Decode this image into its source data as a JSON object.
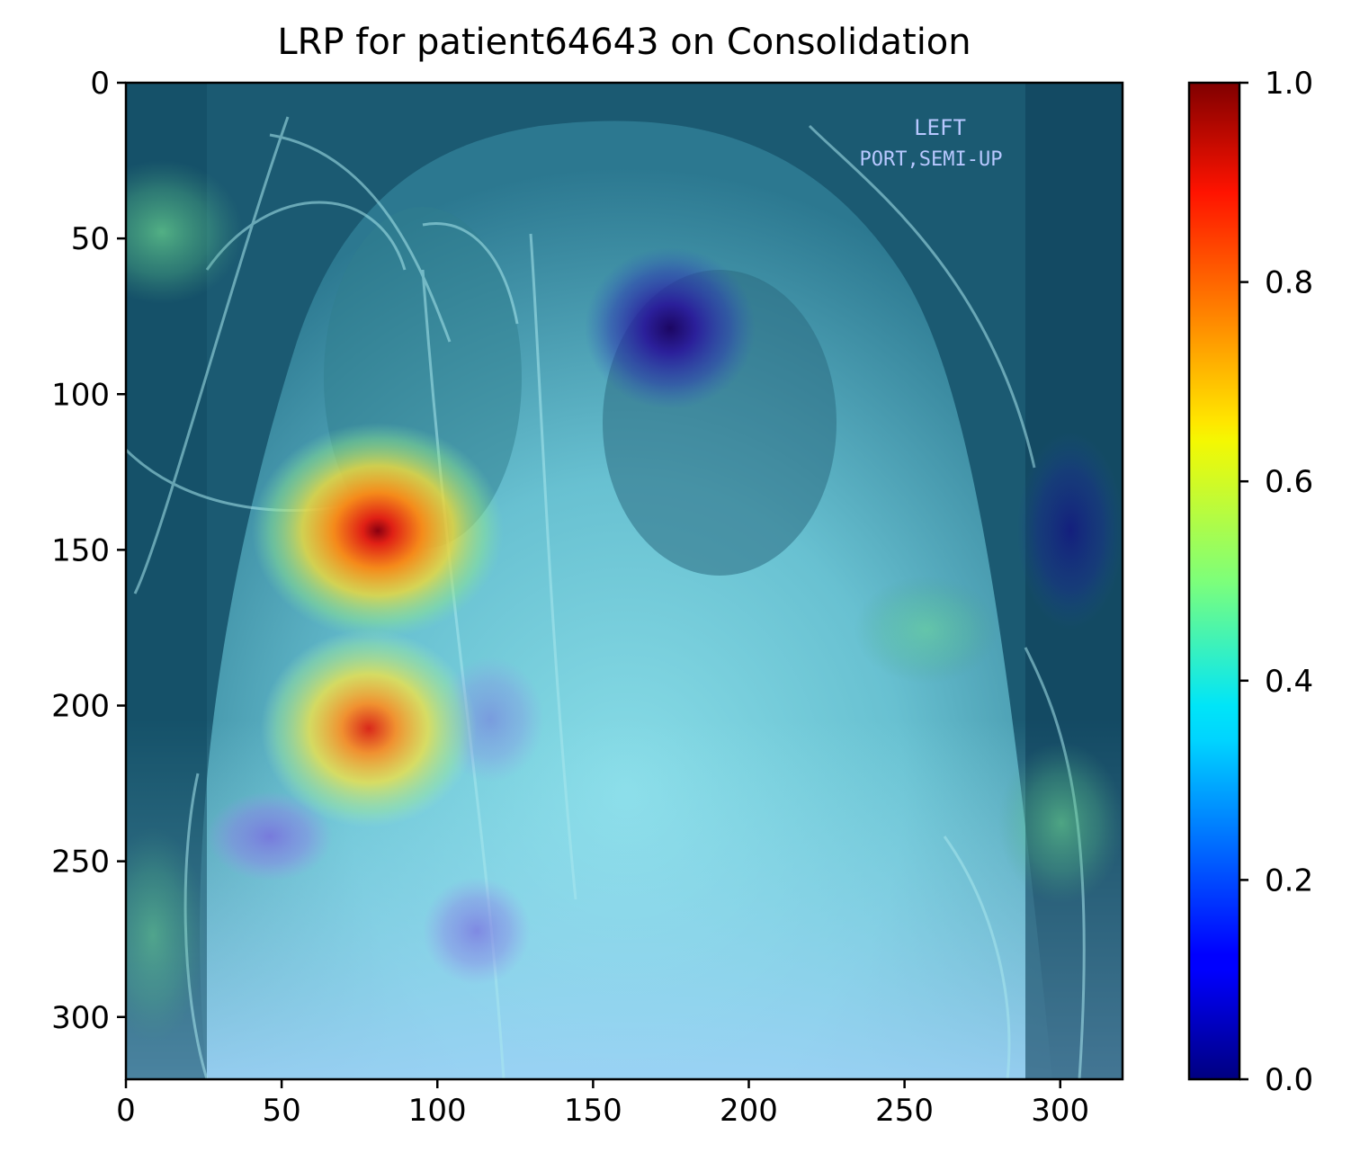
{
  "chart_data": {
    "type": "heatmap",
    "title": "LRP for patient64643 on Consolidation",
    "xlabel": "",
    "ylabel": "",
    "xlim": [
      0,
      320
    ],
    "ylim": [
      320,
      0
    ],
    "x_ticks": [
      "0",
      "50",
      "100",
      "150",
      "200",
      "250",
      "300"
    ],
    "y_ticks": [
      "0",
      "50",
      "100",
      "150",
      "200",
      "250",
      "300"
    ],
    "colorbar": {
      "colormap": "jet",
      "range": [
        0.0,
        1.0
      ],
      "ticks": [
        "0.0",
        "0.2",
        "0.4",
        "0.6",
        "0.8",
        "1.0"
      ]
    },
    "image_annotation": [
      "LEFT",
      "PORT,SEMI-UP"
    ],
    "relevance_hotspots": [
      {
        "x": 81,
        "y": 143,
        "value": 1.0
      },
      {
        "x": 78,
        "y": 207,
        "value": 0.85
      },
      {
        "x": 12,
        "y": 48,
        "value": 0.5
      },
      {
        "x": 300,
        "y": 238,
        "value": 0.5
      },
      {
        "x": 175,
        "y": 78,
        "value": 0.0
      },
      {
        "x": 45,
        "y": 242,
        "value": 0.12
      },
      {
        "x": 113,
        "y": 272,
        "value": 0.15
      },
      {
        "x": 300,
        "y": 140,
        "value": 0.05
      }
    ],
    "grid": false
  }
}
